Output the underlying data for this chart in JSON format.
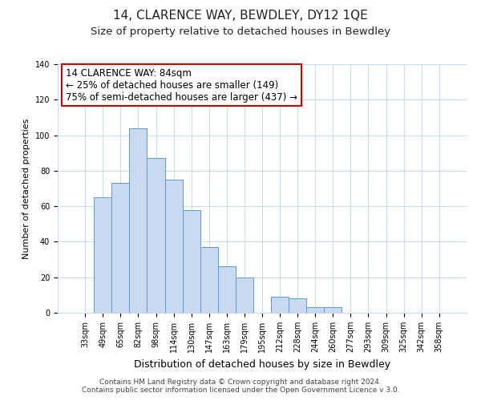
{
  "title": "14, CLARENCE WAY, BEWDLEY, DY12 1QE",
  "subtitle": "Size of property relative to detached houses in Bewdley",
  "xlabel": "Distribution of detached houses by size in Bewdley",
  "ylabel": "Number of detached properties",
  "categories": [
    "33sqm",
    "49sqm",
    "65sqm",
    "82sqm",
    "98sqm",
    "114sqm",
    "130sqm",
    "147sqm",
    "163sqm",
    "179sqm",
    "195sqm",
    "212sqm",
    "228sqm",
    "244sqm",
    "260sqm",
    "277sqm",
    "293sqm",
    "309sqm",
    "325sqm",
    "342sqm",
    "358sqm"
  ],
  "values": [
    0,
    65,
    73,
    104,
    87,
    75,
    58,
    37,
    26,
    20,
    0,
    9,
    8,
    3,
    3,
    0,
    0,
    0,
    0,
    0,
    0
  ],
  "bar_color": "#c8d9f0",
  "bar_edge_color": "#5b9bd5",
  "annotation_box_color": "#ffffff",
  "annotation_box_edge_color": "#cc0000",
  "annotation_title": "14 CLARENCE WAY: 84sqm",
  "annotation_line1": "← 25% of detached houses are smaller (149)",
  "annotation_line2": "75% of semi-detached houses are larger (437) →",
  "annotation_fontsize": 8.5,
  "ylim": [
    0,
    140
  ],
  "yticks": [
    0,
    20,
    40,
    60,
    80,
    100,
    120,
    140
  ],
  "footer1": "Contains HM Land Registry data © Crown copyright and database right 2024.",
  "footer2": "Contains public sector information licensed under the Open Government Licence v 3.0.",
  "background_color": "#ffffff",
  "grid_color": "#c8d9f0",
  "title_fontsize": 11,
  "subtitle_fontsize": 9.5,
  "xlabel_fontsize": 9,
  "ylabel_fontsize": 8,
  "tick_fontsize": 7,
  "footer_fontsize": 6.5
}
